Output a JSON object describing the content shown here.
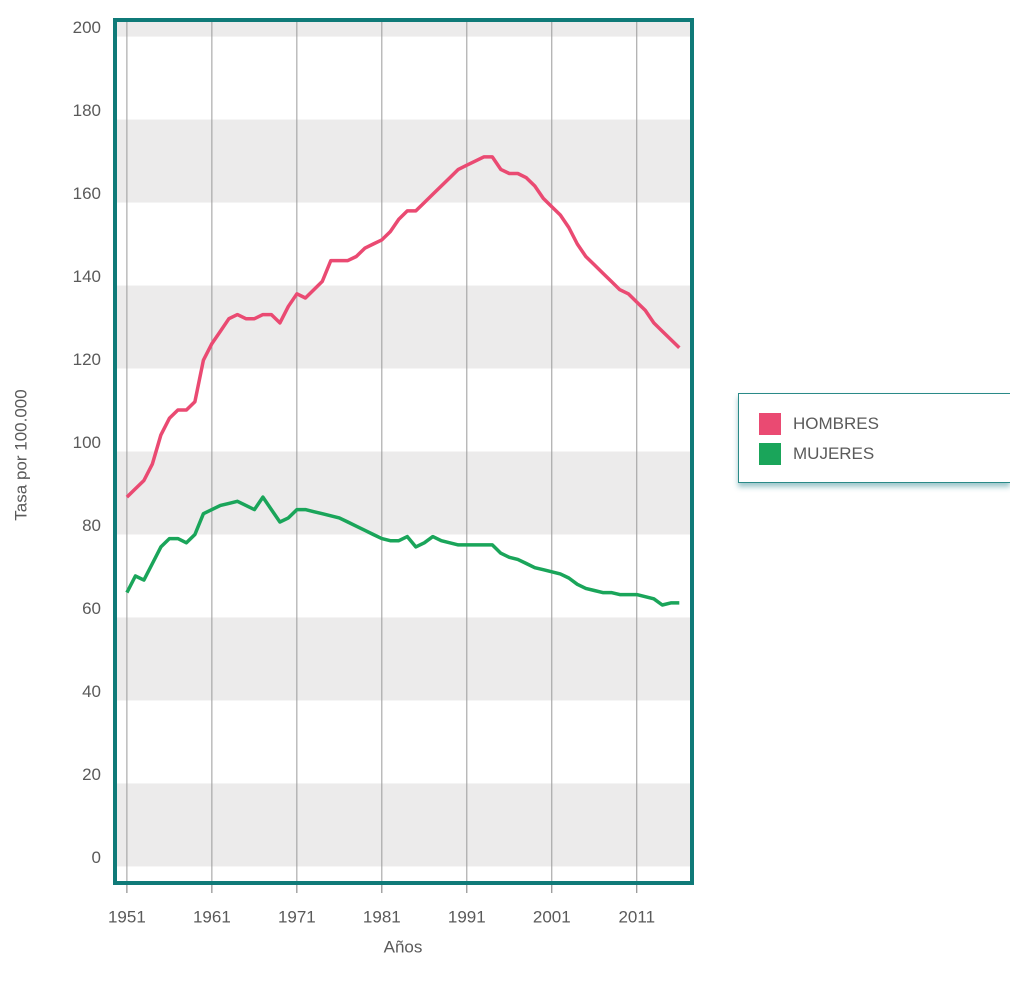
{
  "chart_data": {
    "type": "line",
    "x_label": "Años",
    "y_label": "Tasa por 100.000",
    "x": [
      1951,
      1952,
      1953,
      1954,
      1955,
      1956,
      1957,
      1958,
      1959,
      1960,
      1961,
      1962,
      1963,
      1964,
      1965,
      1966,
      1967,
      1968,
      1969,
      1970,
      1971,
      1972,
      1973,
      1974,
      1975,
      1976,
      1977,
      1978,
      1979,
      1980,
      1981,
      1982,
      1983,
      1984,
      1985,
      1986,
      1987,
      1988,
      1989,
      1990,
      1991,
      1992,
      1993,
      1994,
      1995,
      1996,
      1997,
      1998,
      1999,
      2000,
      2001,
      2002,
      2003,
      2004,
      2005,
      2006,
      2007,
      2008,
      2009,
      2010,
      2011,
      2012,
      2013,
      2014,
      2015,
      2016
    ],
    "series": [
      {
        "name": "HOMBRES",
        "color": "#ea4a72",
        "values": [
          89,
          91,
          93,
          97,
          104,
          108,
          110,
          110,
          112,
          122,
          126,
          129,
          132,
          133,
          132,
          132,
          133,
          133,
          131,
          135,
          138,
          137,
          139,
          141,
          146,
          146,
          146,
          147,
          149,
          150,
          151,
          153,
          156,
          158,
          158,
          160,
          162,
          164,
          166,
          168,
          169,
          170,
          171,
          171,
          168,
          167,
          167,
          166,
          164,
          161,
          159,
          157,
          154,
          150,
          147,
          145,
          143,
          141,
          139,
          138,
          136,
          134,
          131,
          129,
          127,
          125
        ]
      },
      {
        "name": "MUJERES",
        "color": "#1aa55a",
        "values": [
          66,
          70,
          69,
          73,
          77,
          79,
          79,
          78,
          80,
          85,
          86,
          87,
          87.5,
          88,
          87,
          86,
          89,
          86,
          83,
          84,
          86,
          86,
          85.5,
          85,
          84.5,
          84,
          83,
          82,
          81,
          80,
          79,
          78.5,
          78.5,
          79.5,
          77,
          78,
          79.5,
          78.5,
          78,
          77.5,
          77.5,
          77.5,
          77.5,
          77.5,
          75.5,
          74.5,
          74,
          73,
          72,
          71.5,
          71,
          70.5,
          69.5,
          68,
          67,
          66.5,
          66,
          66,
          65.5,
          65.5,
          65.5,
          65,
          64.5,
          63,
          63.5,
          63.5
        ]
      }
    ],
    "xlim": [
      1949.6,
      2017.5
    ],
    "xticks": [
      1951,
      1961,
      1971,
      1981,
      1991,
      2001,
      2011
    ],
    "ylim": [
      -4,
      204
    ],
    "yticks": [
      0,
      20,
      40,
      60,
      80,
      100,
      120,
      140,
      160,
      180,
      200
    ],
    "grid": true,
    "band_color": "#ecebeb",
    "frame_color": "#0f7a78",
    "legend": "right"
  }
}
